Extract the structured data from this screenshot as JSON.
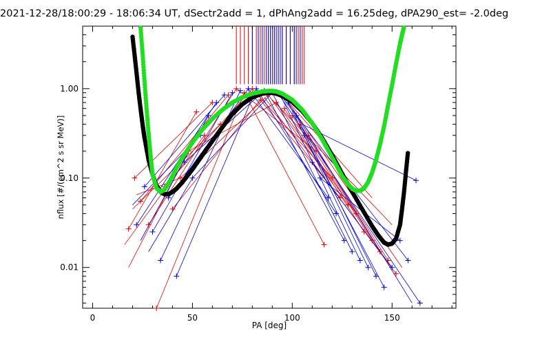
{
  "chart_data": {
    "type": "scatter",
    "title": "2021-12-28/18:00:29 - 18:06:34 UT, dSectr2add = 1, dPhAng2add = 16.25deg, dPA290_est=  -2.0deg",
    "xlabel": "PA [deg]",
    "ylabel": "nflux [#/(cm^2 s sr MeV)]",
    "xlim": [
      -5,
      182
    ],
    "ylim": [
      0.0035,
      5.0
    ],
    "yscale": "log",
    "x_ticks": [
      {
        "value": 0,
        "label": "0"
      },
      {
        "value": 50,
        "label": "50"
      },
      {
        "value": 100,
        "label": "100"
      },
      {
        "value": 150,
        "label": "150"
      }
    ],
    "y_ticks": [
      {
        "value": 0.01,
        "label": "0.01"
      },
      {
        "value": 0.1,
        "label": "0.10"
      },
      {
        "value": 1.0,
        "label": "1.00"
      }
    ],
    "colors": {
      "red": "#dd0000",
      "blue": "#0000dd",
      "black": "#000000",
      "green": "#22dd22"
    },
    "vertical_lines": {
      "red_x": [
        72,
        74,
        76,
        78,
        80,
        82,
        84,
        86,
        88,
        89,
        91,
        93,
        95,
        97,
        99,
        101,
        103,
        105,
        106
      ],
      "blue_x": [
        80,
        83,
        85,
        87,
        88,
        89,
        90,
        91,
        92,
        93,
        94,
        95,
        97,
        99,
        101,
        102,
        104
      ],
      "y_top": 5.0,
      "y_bottom_red": 1.12,
      "y_bottom_blue": 1.12
    },
    "fit_curves": [
      {
        "color": "black",
        "x": [
          20,
          21,
          22,
          23,
          24,
          25,
          26,
          28,
          30,
          32,
          34,
          36,
          38,
          40,
          42,
          45,
          50,
          55,
          60,
          65,
          70,
          75,
          80,
          85,
          88,
          90,
          92,
          95,
          100,
          105,
          110,
          115,
          120,
          125,
          130,
          135,
          140,
          143,
          146,
          148,
          150,
          152,
          154,
          155,
          156,
          157,
          158
        ],
        "y": [
          3.8,
          2.4,
          1.5,
          0.92,
          0.6,
          0.4,
          0.28,
          0.16,
          0.11,
          0.082,
          0.07,
          0.066,
          0.066,
          0.07,
          0.076,
          0.09,
          0.125,
          0.18,
          0.26,
          0.37,
          0.52,
          0.67,
          0.8,
          0.88,
          0.9,
          0.9,
          0.88,
          0.83,
          0.71,
          0.56,
          0.41,
          0.28,
          0.18,
          0.112,
          0.07,
          0.045,
          0.029,
          0.023,
          0.019,
          0.018,
          0.0185,
          0.021,
          0.03,
          0.045,
          0.07,
          0.12,
          0.2
        ]
      },
      {
        "color": "green",
        "x": [
          24,
          25,
          26,
          27,
          28,
          29,
          30,
          32,
          34,
          36,
          38,
          40,
          42,
          45,
          50,
          55,
          60,
          65,
          70,
          75,
          80,
          85,
          88,
          90,
          92,
          95,
          100,
          105,
          110,
          115,
          120,
          125,
          128,
          130,
          132,
          134,
          136,
          138,
          140,
          142,
          144,
          146,
          148,
          150,
          152,
          154,
          155,
          156
        ],
        "y": [
          4.8,
          2.5,
          1.2,
          0.6,
          0.32,
          0.18,
          0.11,
          0.077,
          0.07,
          0.074,
          0.087,
          0.105,
          0.13,
          0.17,
          0.25,
          0.35,
          0.46,
          0.58,
          0.7,
          0.8,
          0.88,
          0.93,
          0.94,
          0.94,
          0.93,
          0.88,
          0.75,
          0.58,
          0.41,
          0.27,
          0.17,
          0.105,
          0.085,
          0.076,
          0.072,
          0.072,
          0.077,
          0.09,
          0.115,
          0.16,
          0.24,
          0.38,
          0.65,
          1.1,
          1.9,
          3.2,
          4.0,
          4.9
        ]
      }
    ],
    "series": [
      {
        "color": "red",
        "points": [
          [
            18,
            0.027
          ],
          [
            21,
            0.1
          ],
          [
            24,
            0.055
          ],
          [
            28,
            0.03
          ],
          [
            32,
            0.0035
          ],
          [
            36,
            0.08
          ],
          [
            40,
            0.045
          ],
          [
            44,
            0.1
          ],
          [
            48,
            0.2
          ],
          [
            52,
            0.55
          ],
          [
            56,
            0.3
          ],
          [
            60,
            0.7
          ],
          [
            64,
            0.4
          ],
          [
            68,
            0.85
          ],
          [
            72,
            1.0
          ],
          [
            76,
            0.9
          ],
          [
            80,
            1.0
          ],
          [
            84,
            0.75
          ],
          [
            88,
            0.85
          ],
          [
            92,
            0.7
          ],
          [
            96,
            0.6
          ],
          [
            100,
            0.5
          ],
          [
            104,
            0.4
          ],
          [
            108,
            0.3
          ],
          [
            112,
            0.2
          ],
          [
            116,
            0.018
          ],
          [
            120,
            0.1
          ],
          [
            124,
            0.06
          ],
          [
            128,
            0.05
          ],
          [
            132,
            0.04
          ],
          [
            136,
            0.025
          ],
          [
            140,
            0.02
          ],
          [
            144,
            0.015
          ],
          [
            148,
            0.012
          ],
          [
            152,
            0.0085
          ]
        ],
        "segments": [
          [
            [
              18,
              0.027
            ],
            [
              52,
              0.55
            ]
          ],
          [
            [
              21,
              0.1
            ],
            [
              60,
              0.7
            ]
          ],
          [
            [
              24,
              0.055
            ],
            [
              68,
              0.85
            ]
          ],
          [
            [
              28,
              0.03
            ],
            [
              72,
              1.0
            ]
          ],
          [
            [
              32,
              0.0035
            ],
            [
              76,
              0.9
            ]
          ],
          [
            [
              16,
              0.018
            ],
            [
              56,
              0.3
            ]
          ],
          [
            [
              20,
              0.045
            ],
            [
              64,
              0.4
            ]
          ],
          [
            [
              36,
              0.08
            ],
            [
              80,
              1.0
            ]
          ],
          [
            [
              40,
              0.045
            ],
            [
              84,
              0.75
            ]
          ],
          [
            [
              44,
              0.1
            ],
            [
              88,
              0.85
            ]
          ],
          [
            [
              48,
              0.2
            ],
            [
              92,
              0.7
            ]
          ],
          [
            [
              18,
              0.01
            ],
            [
              48,
              0.2
            ]
          ],
          [
            [
              22,
              0.065
            ],
            [
              44,
              0.1
            ]
          ],
          [
            [
              72,
              1.0
            ],
            [
              112,
              0.2
            ]
          ],
          [
            [
              76,
              0.9
            ],
            [
              116,
              0.018
            ]
          ],
          [
            [
              80,
              1.0
            ],
            [
              120,
              0.1
            ]
          ],
          [
            [
              84,
              0.75
            ],
            [
              124,
              0.06
            ]
          ],
          [
            [
              88,
              0.85
            ],
            [
              128,
              0.05
            ]
          ],
          [
            [
              92,
              0.7
            ],
            [
              132,
              0.04
            ]
          ],
          [
            [
              96,
              0.6
            ],
            [
              136,
              0.025
            ]
          ],
          [
            [
              100,
              0.5
            ],
            [
              140,
              0.02
            ]
          ],
          [
            [
              104,
              0.4
            ],
            [
              144,
              0.015
            ]
          ],
          [
            [
              108,
              0.3
            ],
            [
              148,
              0.012
            ]
          ],
          [
            [
              86,
              0.8
            ],
            [
              152,
              0.0085
            ]
          ],
          [
            [
              90,
              0.75
            ],
            [
              150,
              0.03
            ]
          ],
          [
            [
              94,
              0.9
            ],
            [
              140,
              0.06
            ]
          ],
          [
            [
              98,
              0.7
            ],
            [
              155,
              0.01
            ]
          ]
        ]
      },
      {
        "color": "blue",
        "points": [
          [
            22,
            0.03
          ],
          [
            26,
            0.08
          ],
          [
            30,
            0.025
          ],
          [
            34,
            0.012
          ],
          [
            38,
            0.06
          ],
          [
            42,
            0.008
          ],
          [
            46,
            0.15
          ],
          [
            50,
            0.1
          ],
          [
            54,
            0.3
          ],
          [
            58,
            0.5
          ],
          [
            62,
            0.7
          ],
          [
            66,
            0.85
          ],
          [
            70,
            0.9
          ],
          [
            74,
            0.95
          ],
          [
            78,
            1.0
          ],
          [
            82,
            1.0
          ],
          [
            86,
            0.95
          ],
          [
            90,
            0.9
          ],
          [
            94,
            0.85
          ],
          [
            98,
            0.7
          ],
          [
            102,
            0.5
          ],
          [
            106,
            0.3
          ],
          [
            110,
            0.15
          ],
          [
            114,
            0.1
          ],
          [
            118,
            0.06
          ],
          [
            122,
            0.04
          ],
          [
            126,
            0.02
          ],
          [
            130,
            0.015
          ],
          [
            134,
            0.012
          ],
          [
            138,
            0.01
          ],
          [
            142,
            0.008
          ],
          [
            146,
            0.006
          ],
          [
            150,
            0.01
          ],
          [
            154,
            0.02
          ],
          [
            158,
            0.012
          ],
          [
            162,
            0.094
          ],
          [
            164,
            0.004
          ]
        ],
        "segments": [
          [
            [
              22,
              0.03
            ],
            [
              62,
              0.7
            ]
          ],
          [
            [
              26,
              0.08
            ],
            [
              66,
              0.85
            ]
          ],
          [
            [
              30,
              0.025
            ],
            [
              70,
              0.9
            ]
          ],
          [
            [
              34,
              0.012
            ],
            [
              74,
              0.95
            ]
          ],
          [
            [
              38,
              0.06
            ],
            [
              78,
              1.0
            ]
          ],
          [
            [
              42,
              0.008
            ],
            [
              82,
              1.0
            ]
          ],
          [
            [
              46,
              0.15
            ],
            [
              86,
              0.95
            ]
          ],
          [
            [
              50,
              0.1
            ],
            [
              90,
              0.9
            ]
          ],
          [
            [
              20,
              0.05
            ],
            [
              54,
              0.3
            ]
          ],
          [
            [
              24,
              0.02
            ],
            [
              58,
              0.5
            ]
          ],
          [
            [
              28,
              0.015
            ],
            [
              50,
              0.1
            ]
          ],
          [
            [
              78,
              1.0
            ],
            [
              118,
              0.06
            ]
          ],
          [
            [
              82,
              1.0
            ],
            [
              122,
              0.04
            ]
          ],
          [
            [
              86,
              0.95
            ],
            [
              126,
              0.02
            ]
          ],
          [
            [
              90,
              0.9
            ],
            [
              130,
              0.015
            ]
          ],
          [
            [
              94,
              0.85
            ],
            [
              134,
              0.012
            ]
          ],
          [
            [
              98,
              0.7
            ],
            [
              138,
              0.01
            ]
          ],
          [
            [
              102,
              0.5
            ],
            [
              142,
              0.008
            ]
          ],
          [
            [
              106,
              0.3
            ],
            [
              146,
              0.006
            ]
          ],
          [
            [
              110,
              0.15
            ],
            [
              150,
              0.01
            ]
          ],
          [
            [
              114,
              0.1
            ],
            [
              154,
              0.02
            ]
          ],
          [
            [
              95,
              0.8
            ],
            [
              158,
              0.012
            ]
          ],
          [
            [
              100,
              0.6
            ],
            [
              160,
              0.004
            ]
          ],
          [
            [
              105,
              0.4
            ],
            [
              162,
              0.094
            ]
          ],
          [
            [
              92,
              0.95
            ],
            [
              164,
              0.004
            ]
          ]
        ]
      }
    ]
  }
}
